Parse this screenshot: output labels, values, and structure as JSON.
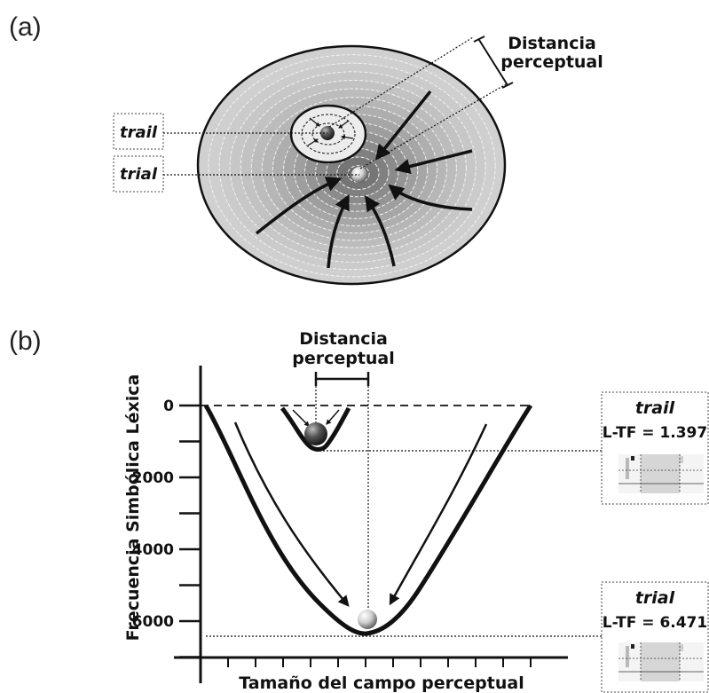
{
  "panel_a": {
    "label": "(a)",
    "distance_line1": "Distancia",
    "distance_line2": "perceptual",
    "trail_label": "trail",
    "trial_label": "trial"
  },
  "panel_b": {
    "label": "(b)",
    "distance_line1": "Distancia",
    "distance_line2": "perceptual",
    "y_axis_label": "Frecuencia Simbólica Léxica",
    "x_axis_label": "Tamaño del campo perceptual",
    "y_ticks": [
      "0",
      "2000",
      "4000",
      "6000"
    ],
    "trail_box": {
      "title": "trail",
      "value": "L-TF = 1.397"
    },
    "trial_box": {
      "title": "trial",
      "value": "L-TF = 6.471"
    }
  },
  "colors": {
    "ring_outer": "#d0d0d0",
    "ring_inner": "#6a6a6a",
    "ink": "#111111"
  }
}
